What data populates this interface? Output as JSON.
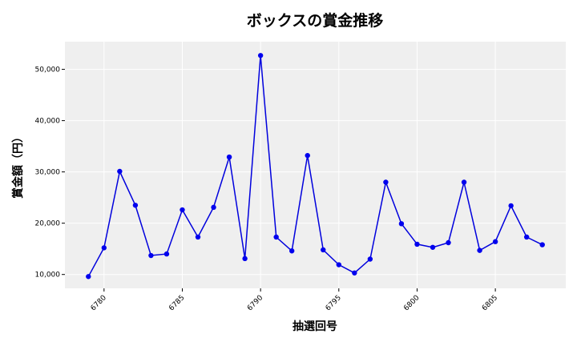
{
  "chart_data": {
    "type": "line",
    "title": "ボックスの賞金推移",
    "xlabel": "抽選回号",
    "ylabel": "賞金額（円）",
    "xlim": [
      6777.5,
      6809.5
    ],
    "ylim": [
      7300,
      55400
    ],
    "x_ticks": [
      6780,
      6785,
      6790,
      6795,
      6800,
      6805
    ],
    "y_ticks": [
      10000,
      20000,
      30000,
      40000,
      50000
    ],
    "y_tick_labels": [
      "10,000",
      "20,000",
      "30,000",
      "40,000",
      "50,000"
    ],
    "grid": true,
    "colors": {
      "line": "#0000dd",
      "marker": "#0000ee",
      "plot_bg": "#efefef",
      "grid": "#ffffff"
    },
    "x": [
      6779,
      6780,
      6781,
      6782,
      6783,
      6784,
      6785,
      6786,
      6787,
      6788,
      6789,
      6790,
      6791,
      6792,
      6793,
      6794,
      6795,
      6796,
      6797,
      6798,
      6799,
      6800,
      6801,
      6802,
      6803,
      6804,
      6805,
      6806,
      6807,
      6808
    ],
    "values": [
      9600,
      15200,
      30100,
      23500,
      13700,
      14000,
      22600,
      17300,
      23100,
      32900,
      13100,
      52700,
      17300,
      14600,
      33200,
      14800,
      11900,
      10300,
      13000,
      28000,
      19900,
      15900,
      15300,
      16200,
      28000,
      14700,
      16400,
      23400,
      17300,
      15800
    ]
  }
}
